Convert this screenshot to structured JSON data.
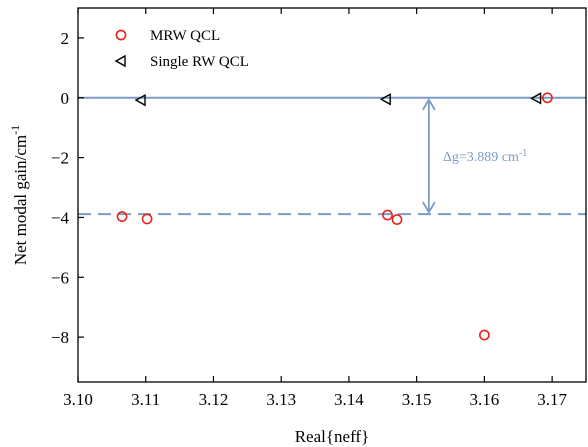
{
  "chart_data": {
    "type": "scatter",
    "xlabel": "Real{neff}",
    "ylabel": "Net modal gain/cm",
    "ylabel_sup": "-1",
    "xlim": [
      3.1,
      3.175
    ],
    "ylim": [
      -9.5,
      3.0
    ],
    "xticks": [
      3.1,
      3.11,
      3.12,
      3.13,
      3.14,
      3.15,
      3.16,
      3.17
    ],
    "xtick_labels": [
      "3.10",
      "3.11",
      "3.12",
      "3.13",
      "3.14",
      "3.15",
      "3.16",
      "3.17"
    ],
    "yticks": [
      2,
      0,
      -2,
      -4,
      -6,
      -8
    ],
    "ytick_labels": [
      "2",
      "0",
      "−2",
      "−4",
      "−6",
      "−8"
    ],
    "series": [
      {
        "name": "MRW QCL",
        "marker": "circle",
        "color": "#e8231b",
        "points": [
          {
            "x": 3.1065,
            "y": -3.97
          },
          {
            "x": 3.1102,
            "y": -4.05
          },
          {
            "x": 3.1457,
            "y": -3.92
          },
          {
            "x": 3.1471,
            "y": -4.07
          },
          {
            "x": 3.16,
            "y": -7.93
          },
          {
            "x": 3.1693,
            "y": 0.0
          }
        ]
      },
      {
        "name": "Single RW QCL",
        "marker": "triangle-left",
        "color": "#000000",
        "points": [
          {
            "x": 3.1093,
            "y": -0.08
          },
          {
            "x": 3.1455,
            "y": -0.05
          },
          {
            "x": 3.1677,
            "y": -0.02
          }
        ]
      }
    ],
    "reference_lines": [
      {
        "y": 0,
        "style": "solid",
        "color": "#7a9cc9"
      },
      {
        "y": -3.889,
        "style": "dashed",
        "color": "#7a9cc9"
      }
    ],
    "annotation": {
      "x": 3.1518,
      "y_top": 0,
      "y_bottom": -3.889,
      "text_main": "Δg=3.889 cm",
      "text_sup": "-1",
      "color": "#7a9cc9"
    },
    "legend_position": "top-left",
    "grid": false
  }
}
